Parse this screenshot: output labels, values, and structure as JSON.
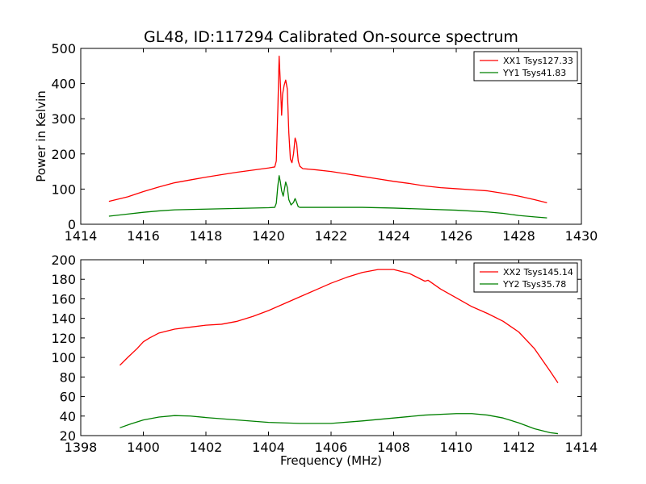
{
  "figure": {
    "title": "GL48, ID:117294 Calibrated On-source spectrum",
    "xlabel": "Frequency (MHz)",
    "ylabel": "Power in Kelvin"
  },
  "chart_data": [
    {
      "type": "line",
      "title": "GL48, ID:117294 Calibrated On-source spectrum",
      "xlabel": "",
      "ylabel": "Power in Kelvin",
      "xlim": [
        1414,
        1430
      ],
      "ylim": [
        0,
        500
      ],
      "xticks": [
        1414,
        1416,
        1418,
        1420,
        1422,
        1424,
        1426,
        1428,
        1430
      ],
      "yticks": [
        0,
        100,
        200,
        300,
        400,
        500
      ],
      "grid": false,
      "legend": "top-right",
      "series": [
        {
          "name": "XX1 Tsys127.33",
          "color": "#ff0000",
          "points": [
            [
              1414.9,
              65
            ],
            [
              1415.5,
              78
            ],
            [
              1416.0,
              93
            ],
            [
              1416.5,
              106
            ],
            [
              1417.0,
              118
            ],
            [
              1417.5,
              126
            ],
            [
              1418.0,
              134
            ],
            [
              1418.5,
              141
            ],
            [
              1419.0,
              148
            ],
            [
              1419.5,
              154
            ],
            [
              1420.0,
              160
            ],
            [
              1420.2,
              163
            ],
            [
              1420.25,
              180
            ],
            [
              1420.3,
              330
            ],
            [
              1420.34,
              478
            ],
            [
              1420.38,
              400
            ],
            [
              1420.42,
              310
            ],
            [
              1420.45,
              370
            ],
            [
              1420.5,
              395
            ],
            [
              1420.55,
              410
            ],
            [
              1420.6,
              385
            ],
            [
              1420.65,
              260
            ],
            [
              1420.7,
              185
            ],
            [
              1420.75,
              175
            ],
            [
              1420.8,
              200
            ],
            [
              1420.85,
              245
            ],
            [
              1420.9,
              230
            ],
            [
              1420.95,
              180
            ],
            [
              1421.0,
              165
            ],
            [
              1421.1,
              158
            ],
            [
              1421.5,
              155
            ],
            [
              1422.0,
              150
            ],
            [
              1422.5,
              143
            ],
            [
              1423.0,
              136
            ],
            [
              1423.5,
              129
            ],
            [
              1424.0,
              122
            ],
            [
              1424.5,
              116
            ],
            [
              1425.0,
              109
            ],
            [
              1425.5,
              104
            ],
            [
              1426.0,
              101
            ],
            [
              1426.5,
              98
            ],
            [
              1427.0,
              95
            ],
            [
              1427.5,
              88
            ],
            [
              1428.0,
              80
            ],
            [
              1428.5,
              70
            ],
            [
              1428.9,
              61
            ]
          ]
        },
        {
          "name": "YY1 Tsys41.83",
          "color": "#008000",
          "points": [
            [
              1414.9,
              23
            ],
            [
              1415.5,
              29
            ],
            [
              1416.0,
              34
            ],
            [
              1416.5,
              38
            ],
            [
              1417.0,
              41
            ],
            [
              1418.0,
              43
            ],
            [
              1419.0,
              45
            ],
            [
              1420.0,
              47
            ],
            [
              1420.2,
              48
            ],
            [
              1420.25,
              60
            ],
            [
              1420.3,
              110
            ],
            [
              1420.34,
              138
            ],
            [
              1420.38,
              120
            ],
            [
              1420.42,
              95
            ],
            [
              1420.47,
              80
            ],
            [
              1420.55,
              120
            ],
            [
              1420.6,
              105
            ],
            [
              1420.65,
              70
            ],
            [
              1420.72,
              55
            ],
            [
              1420.8,
              62
            ],
            [
              1420.85,
              73
            ],
            [
              1420.9,
              62
            ],
            [
              1420.95,
              50
            ],
            [
              1421.0,
              48
            ],
            [
              1422.0,
              48
            ],
            [
              1423.0,
              48
            ],
            [
              1424.0,
              46
            ],
            [
              1425.0,
              43
            ],
            [
              1426.0,
              40
            ],
            [
              1427.0,
              35
            ],
            [
              1427.5,
              31
            ],
            [
              1428.0,
              25
            ],
            [
              1428.5,
              21
            ],
            [
              1428.9,
              18
            ]
          ]
        }
      ]
    },
    {
      "type": "line",
      "title": "",
      "xlabel": "Frequency (MHz)",
      "ylabel": "",
      "xlim": [
        1398,
        1414
      ],
      "ylim": [
        20,
        200
      ],
      "xticks": [
        1398,
        1400,
        1402,
        1404,
        1406,
        1408,
        1410,
        1412,
        1414
      ],
      "yticks": [
        20,
        40,
        60,
        80,
        100,
        120,
        140,
        160,
        180,
        200
      ],
      "grid": false,
      "legend": "top-right",
      "series": [
        {
          "name": "XX2 Tsys145.14",
          "color": "#ff0000",
          "points": [
            [
              1399.25,
              92
            ],
            [
              1399.5,
              100
            ],
            [
              1399.8,
              109
            ],
            [
              1400.0,
              116
            ],
            [
              1400.2,
              120
            ],
            [
              1400.5,
              125
            ],
            [
              1401.0,
              129
            ],
            [
              1401.5,
              131
            ],
            [
              1402.0,
              133
            ],
            [
              1402.5,
              134
            ],
            [
              1403.0,
              137
            ],
            [
              1403.5,
              142
            ],
            [
              1404.0,
              148
            ],
            [
              1404.5,
              155
            ],
            [
              1405.0,
              162
            ],
            [
              1405.5,
              169
            ],
            [
              1406.0,
              176
            ],
            [
              1406.5,
              182
            ],
            [
              1407.0,
              187
            ],
            [
              1407.5,
              190
            ],
            [
              1408.0,
              190
            ],
            [
              1408.5,
              186
            ],
            [
              1409.0,
              178
            ],
            [
              1409.1,
              179
            ],
            [
              1409.5,
              170
            ],
            [
              1410.0,
              161
            ],
            [
              1410.5,
              152
            ],
            [
              1411.0,
              145
            ],
            [
              1411.5,
              137
            ],
            [
              1412.0,
              126
            ],
            [
              1412.5,
              109
            ],
            [
              1413.0,
              86
            ],
            [
              1413.25,
              74
            ]
          ]
        },
        {
          "name": "YY2 Tsys35.78",
          "color": "#008000",
          "points": [
            [
              1399.25,
              28
            ],
            [
              1399.6,
              32
            ],
            [
              1400.0,
              36
            ],
            [
              1400.5,
              39
            ],
            [
              1401.0,
              40.5
            ],
            [
              1401.5,
              40
            ],
            [
              1402.0,
              38.5
            ],
            [
              1403.0,
              36
            ],
            [
              1404.0,
              33.5
            ],
            [
              1405.0,
              32.5
            ],
            [
              1406.0,
              32.5
            ],
            [
              1407.0,
              35
            ],
            [
              1408.0,
              38
            ],
            [
              1409.0,
              41
            ],
            [
              1410.0,
              42.5
            ],
            [
              1410.5,
              42.5
            ],
            [
              1411.0,
              41
            ],
            [
              1411.5,
              38
            ],
            [
              1412.0,
              33
            ],
            [
              1412.5,
              27
            ],
            [
              1413.0,
              23
            ],
            [
              1413.25,
              22
            ]
          ]
        }
      ]
    }
  ]
}
